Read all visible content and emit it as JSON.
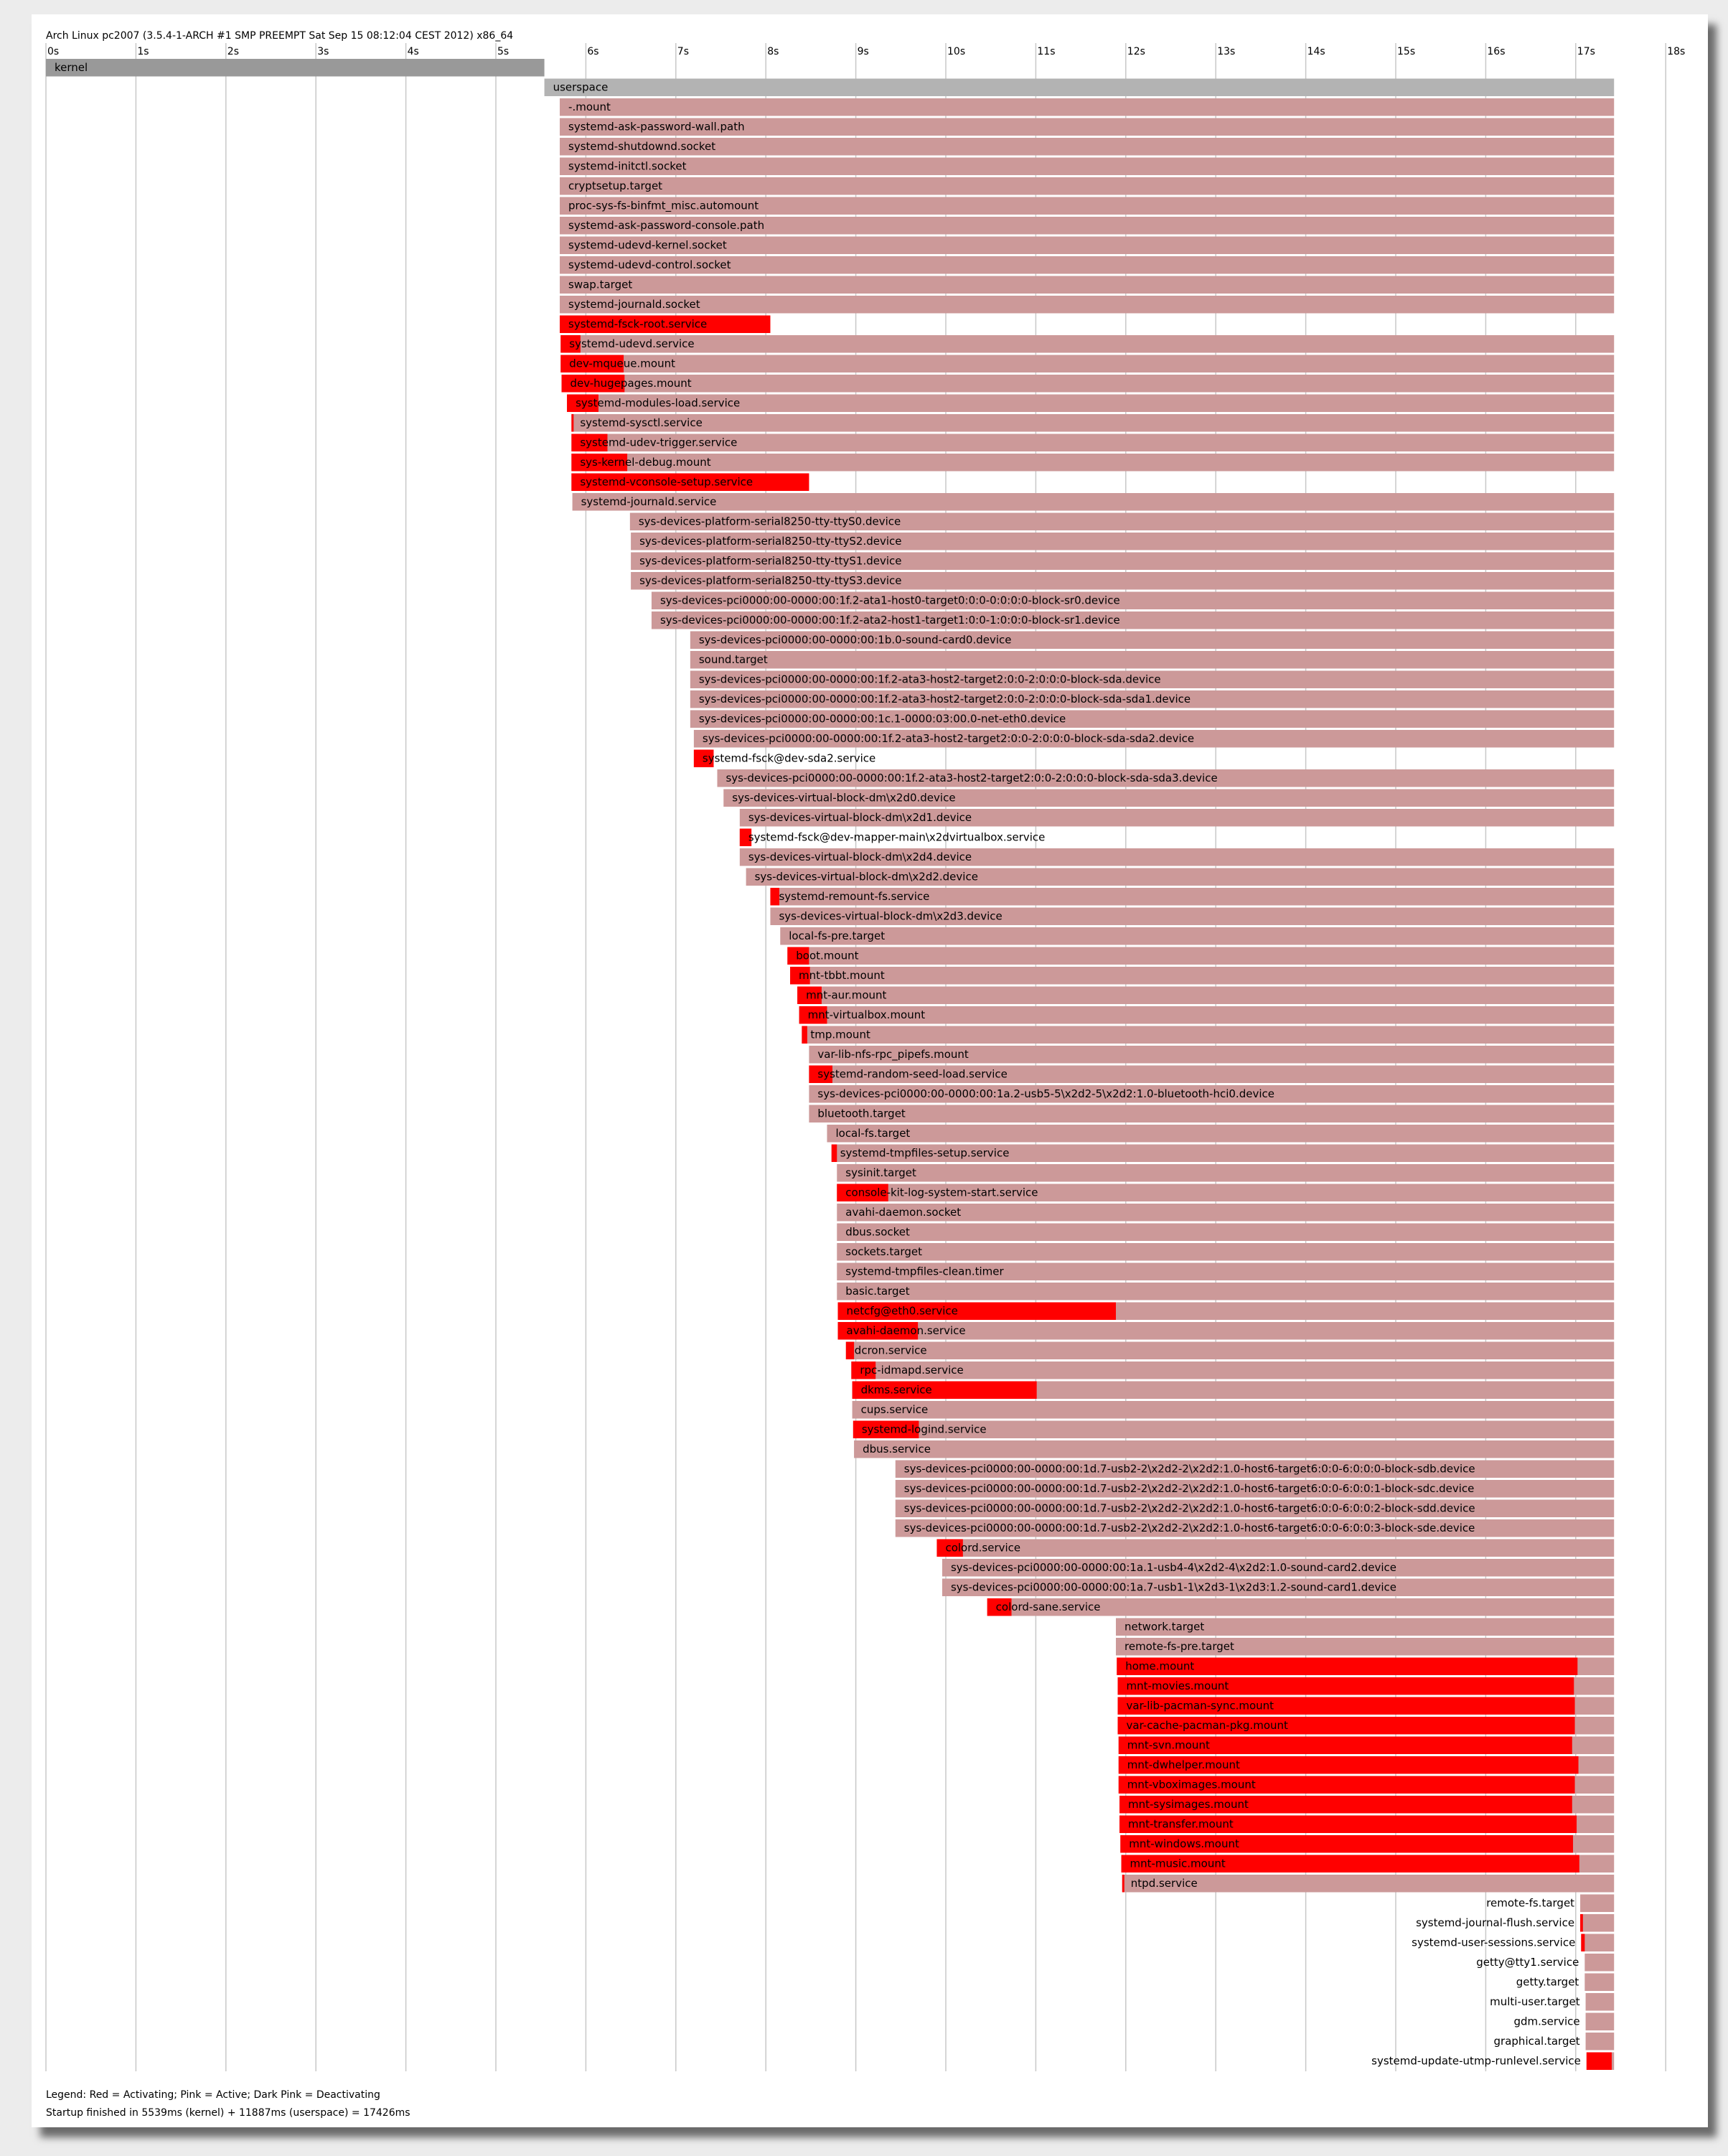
{
  "header": "Arch Linux pc2007 (3.5.4-1-ARCH #1 SMP PREEMPT Sat Sep 15 08:12:04 CEST 2012) x86_64",
  "legend": "Legend: Red = Activating; Pink = Active; Dark Pink = Deactivating",
  "summary": "Startup finished in 5539ms (kernel) + 11887ms (userspace) = 17426ms",
  "colors": {
    "activating": "#ff0000",
    "active": "#cc9999",
    "kernel": "#999999",
    "userspace": "#b3b3b3",
    "gridline": "#c8c8c8",
    "background": "#ffffff"
  },
  "chart_data": {
    "type": "bar",
    "orientation": "horizontal-timeline",
    "unit": "s",
    "xlim": [
      0,
      18
    ],
    "ticks": [
      "0s",
      "1s",
      "2s",
      "3s",
      "4s",
      "5s",
      "6s",
      "7s",
      "8s",
      "9s",
      "10s",
      "11s",
      "12s",
      "13s",
      "14s",
      "15s",
      "16s",
      "17s",
      "18s"
    ],
    "end": 17.426,
    "kernel": {
      "name": "kernel",
      "start": 0,
      "end": 5.539
    },
    "userspace": {
      "name": "userspace",
      "start": 5.539,
      "end": 17.426
    },
    "units": [
      {
        "name": "-.mount",
        "start": 5.71,
        "act": 0
      },
      {
        "name": "systemd-ask-password-wall.path",
        "start": 5.71,
        "act": 0
      },
      {
        "name": "systemd-shutdownd.socket",
        "start": 5.71,
        "act": 0
      },
      {
        "name": "systemd-initctl.socket",
        "start": 5.71,
        "act": 0
      },
      {
        "name": "cryptsetup.target",
        "start": 5.71,
        "act": 0
      },
      {
        "name": "proc-sys-fs-binfmt_misc.automount",
        "start": 5.71,
        "act": 0
      },
      {
        "name": "systemd-ask-password-console.path",
        "start": 5.71,
        "act": 0
      },
      {
        "name": "systemd-udevd-kernel.socket",
        "start": 5.71,
        "act": 0
      },
      {
        "name": "systemd-udevd-control.socket",
        "start": 5.71,
        "act": 0
      },
      {
        "name": "swap.target",
        "start": 5.71,
        "act": 0
      },
      {
        "name": "systemd-journald.socket",
        "start": 5.71,
        "act": 0
      },
      {
        "name": "systemd-fsck-root.service",
        "start": 5.71,
        "act": 2.34,
        "actend": 8.05
      },
      {
        "name": "systemd-udevd.service",
        "start": 5.72,
        "act": 0.22
      },
      {
        "name": "dev-mqueue.mount",
        "start": 5.72,
        "act": 0.7
      },
      {
        "name": "dev-hugepages.mount",
        "start": 5.73,
        "act": 0.7
      },
      {
        "name": "systemd-modules-load.service",
        "start": 5.79,
        "act": 0.35
      },
      {
        "name": "systemd-sysctl.service",
        "start": 5.84,
        "act": 0.02
      },
      {
        "name": "systemd-udev-trigger.service",
        "start": 5.84,
        "act": 0.4
      },
      {
        "name": "sys-kernel-debug.mount",
        "start": 5.84,
        "act": 0.62
      },
      {
        "name": "systemd-vconsole-setup.service",
        "start": 5.84,
        "act": 2.64,
        "actend": 8.48
      },
      {
        "name": "systemd-journald.service",
        "start": 5.85,
        "act": 0
      },
      {
        "name": "sys-devices-platform-serial8250-tty-ttyS0.device",
        "start": 6.49,
        "act": 0
      },
      {
        "name": "sys-devices-platform-serial8250-tty-ttyS2.device",
        "start": 6.5,
        "act": 0
      },
      {
        "name": "sys-devices-platform-serial8250-tty-ttyS1.device",
        "start": 6.5,
        "act": 0
      },
      {
        "name": "sys-devices-platform-serial8250-tty-ttyS3.device",
        "start": 6.5,
        "act": 0
      },
      {
        "name": "sys-devices-pci0000:00-0000:00:1f.2-ata1-host0-target0:0:0-0:0:0:0-block-sr0.device",
        "start": 6.73,
        "act": 0
      },
      {
        "name": "sys-devices-pci0000:00-0000:00:1f.2-ata2-host1-target1:0:0-1:0:0:0-block-sr1.device",
        "start": 6.73,
        "act": 0
      },
      {
        "name": "sys-devices-pci0000:00-0000:00:1b.0-sound-card0.device",
        "start": 7.16,
        "act": 0
      },
      {
        "name": "sound.target",
        "start": 7.16,
        "act": 0
      },
      {
        "name": "sys-devices-pci0000:00-0000:00:1f.2-ata3-host2-target2:0:0-2:0:0:0-block-sda.device",
        "start": 7.16,
        "act": 0
      },
      {
        "name": "sys-devices-pci0000:00-0000:00:1f.2-ata3-host2-target2:0:0-2:0:0:0-block-sda-sda1.device",
        "start": 7.16,
        "act": 0
      },
      {
        "name": "sys-devices-pci0000:00-0000:00:1c.1-0000:03:00.0-net-eth0.device",
        "start": 7.16,
        "act": 0
      },
      {
        "name": "sys-devices-pci0000:00-0000:00:1f.2-ata3-host2-target2:0:0-2:0:0:0-block-sda-sda2.device",
        "start": 7.2,
        "act": 0
      },
      {
        "name": "systemd-fsck@dev-sda2.service",
        "start": 7.2,
        "act": 0.22,
        "actend": 7.42
      },
      {
        "name": "sys-devices-pci0000:00-0000:00:1f.2-ata3-host2-target2:0:0-2:0:0:0-block-sda-sda3.device",
        "start": 7.46,
        "act": 0
      },
      {
        "name": "sys-devices-virtual-block-dm\\x2d0.device",
        "start": 7.53,
        "act": 0
      },
      {
        "name": "sys-devices-virtual-block-dm\\x2d1.device",
        "start": 7.71,
        "act": 0
      },
      {
        "name": "systemd-fsck@dev-mapper-main\\x2dvirtualbox.service",
        "start": 7.71,
        "act": 0.13,
        "actend": 7.84
      },
      {
        "name": "sys-devices-virtual-block-dm\\x2d4.device",
        "start": 7.71,
        "act": 0
      },
      {
        "name": "sys-devices-virtual-block-dm\\x2d2.device",
        "start": 7.78,
        "act": 0
      },
      {
        "name": "systemd-remount-fs.service",
        "start": 8.05,
        "act": 0.1
      },
      {
        "name": "sys-devices-virtual-block-dm\\x2d3.device",
        "start": 8.05,
        "act": 0
      },
      {
        "name": "local-fs-pre.target",
        "start": 8.16,
        "act": 0
      },
      {
        "name": "boot.mount",
        "start": 8.24,
        "act": 0.24
      },
      {
        "name": "mnt-tbbt.mount",
        "start": 8.27,
        "act": 0.22
      },
      {
        "name": "mnt-aur.mount",
        "start": 8.35,
        "act": 0.27
      },
      {
        "name": "mnt-virtualbox.mount",
        "start": 8.37,
        "act": 0.31
      },
      {
        "name": "tmp.mount",
        "start": 8.4,
        "act": 0.06
      },
      {
        "name": "var-lib-nfs-rpc_pipefs.mount",
        "start": 8.48,
        "act": 0
      },
      {
        "name": "systemd-random-seed-load.service",
        "start": 8.48,
        "act": 0.26
      },
      {
        "name": "sys-devices-pci0000:00-0000:00:1a.2-usb5-5\\x2d2-5\\x2d2:1.0-bluetooth-hci0.device",
        "start": 8.48,
        "act": 0
      },
      {
        "name": "bluetooth.target",
        "start": 8.48,
        "act": 0
      },
      {
        "name": "local-fs.target",
        "start": 8.68,
        "act": 0
      },
      {
        "name": "systemd-tmpfiles-setup.service",
        "start": 8.73,
        "act": 0.06
      },
      {
        "name": "sysinit.target",
        "start": 8.79,
        "act": 0
      },
      {
        "name": "console-kit-log-system-start.service",
        "start": 8.79,
        "act": 0.57
      },
      {
        "name": "avahi-daemon.socket",
        "start": 8.79,
        "act": 0
      },
      {
        "name": "dbus.socket",
        "start": 8.79,
        "act": 0
      },
      {
        "name": "sockets.target",
        "start": 8.79,
        "act": 0
      },
      {
        "name": "systemd-tmpfiles-clean.timer",
        "start": 8.79,
        "act": 0
      },
      {
        "name": "basic.target",
        "start": 8.79,
        "act": 0
      },
      {
        "name": "netcfg@eth0.service",
        "start": 8.8,
        "act": 3.09
      },
      {
        "name": "avahi-daemon.service",
        "start": 8.8,
        "act": 0.89
      },
      {
        "name": "dcron.service",
        "start": 8.89,
        "act": 0.09
      },
      {
        "name": "rpc-idmapd.service",
        "start": 8.95,
        "act": 0.27
      },
      {
        "name": "dkms.service",
        "start": 8.96,
        "act": 2.05
      },
      {
        "name": "cups.service",
        "start": 8.96,
        "act": 0
      },
      {
        "name": "systemd-logind.service",
        "start": 8.97,
        "act": 0.73
      },
      {
        "name": "dbus.service",
        "start": 8.98,
        "act": 0
      },
      {
        "name": "sys-devices-pci0000:00-0000:00:1d.7-usb2-2\\x2d2-2\\x2d2:1.0-host6-target6:0:0-6:0:0:0-block-sdb.device",
        "start": 9.44,
        "act": 0
      },
      {
        "name": "sys-devices-pci0000:00-0000:00:1d.7-usb2-2\\x2d2-2\\x2d2:1.0-host6-target6:0:0-6:0:0:1-block-sdc.device",
        "start": 9.44,
        "act": 0
      },
      {
        "name": "sys-devices-pci0000:00-0000:00:1d.7-usb2-2\\x2d2-2\\x2d2:1.0-host6-target6:0:0-6:0:0:2-block-sdd.device",
        "start": 9.44,
        "act": 0
      },
      {
        "name": "sys-devices-pci0000:00-0000:00:1d.7-usb2-2\\x2d2-2\\x2d2:1.0-host6-target6:0:0-6:0:0:3-block-sde.device",
        "start": 9.44,
        "act": 0
      },
      {
        "name": "colord.service",
        "start": 9.9,
        "act": 0.29
      },
      {
        "name": "sys-devices-pci0000:00-0000:00:1a.1-usb4-4\\x2d2-4\\x2d2:1.0-sound-card2.device",
        "start": 9.96,
        "act": 0
      },
      {
        "name": "sys-devices-pci0000:00-0000:00:1a.7-usb1-1\\x2d3-1\\x2d3:1.2-sound-card1.device",
        "start": 9.96,
        "act": 0
      },
      {
        "name": "colord-sane.service",
        "start": 10.46,
        "act": 0.27
      },
      {
        "name": "network.target",
        "start": 11.89,
        "act": 0
      },
      {
        "name": "remote-fs-pre.target",
        "start": 11.89,
        "act": 0
      },
      {
        "name": "home.mount",
        "start": 11.9,
        "act": 5.12
      },
      {
        "name": "mnt-movies.mount",
        "start": 11.91,
        "act": 5.07
      },
      {
        "name": "var-lib-pacman-sync.mount",
        "start": 11.91,
        "act": 5.08
      },
      {
        "name": "var-cache-pacman-pkg.mount",
        "start": 11.91,
        "act": 5.08
      },
      {
        "name": "mnt-svn.mount",
        "start": 11.92,
        "act": 5.04
      },
      {
        "name": "mnt-dwhelper.mount",
        "start": 11.92,
        "act": 5.11
      },
      {
        "name": "mnt-vboximages.mount",
        "start": 11.92,
        "act": 5.07
      },
      {
        "name": "mnt-sysimages.mount",
        "start": 11.93,
        "act": 5.03
      },
      {
        "name": "mnt-transfer.mount",
        "start": 11.93,
        "act": 5.08
      },
      {
        "name": "mnt-windows.mount",
        "start": 11.94,
        "act": 5.03
      },
      {
        "name": "mnt-music.mount",
        "start": 11.95,
        "act": 5.09
      },
      {
        "name": "ntpd.service",
        "start": 11.96,
        "act": 0.02
      },
      {
        "name": "remote-fs.target",
        "start": 17.05,
        "act": 0
      },
      {
        "name": "systemd-journal-flush.service",
        "start": 17.05,
        "act": 0.03
      },
      {
        "name": "systemd-user-sessions.service",
        "start": 17.06,
        "act": 0.04
      },
      {
        "name": "getty@tty1.service",
        "start": 17.1,
        "act": 0
      },
      {
        "name": "getty.target",
        "start": 17.1,
        "act": 0
      },
      {
        "name": "multi-user.target",
        "start": 17.11,
        "act": 0
      },
      {
        "name": "gdm.service",
        "start": 17.11,
        "act": 0
      },
      {
        "name": "graphical.target",
        "start": 17.11,
        "act": 0
      },
      {
        "name": "systemd-update-utmp-runlevel.service",
        "start": 17.12,
        "act": 0.28
      }
    ]
  }
}
